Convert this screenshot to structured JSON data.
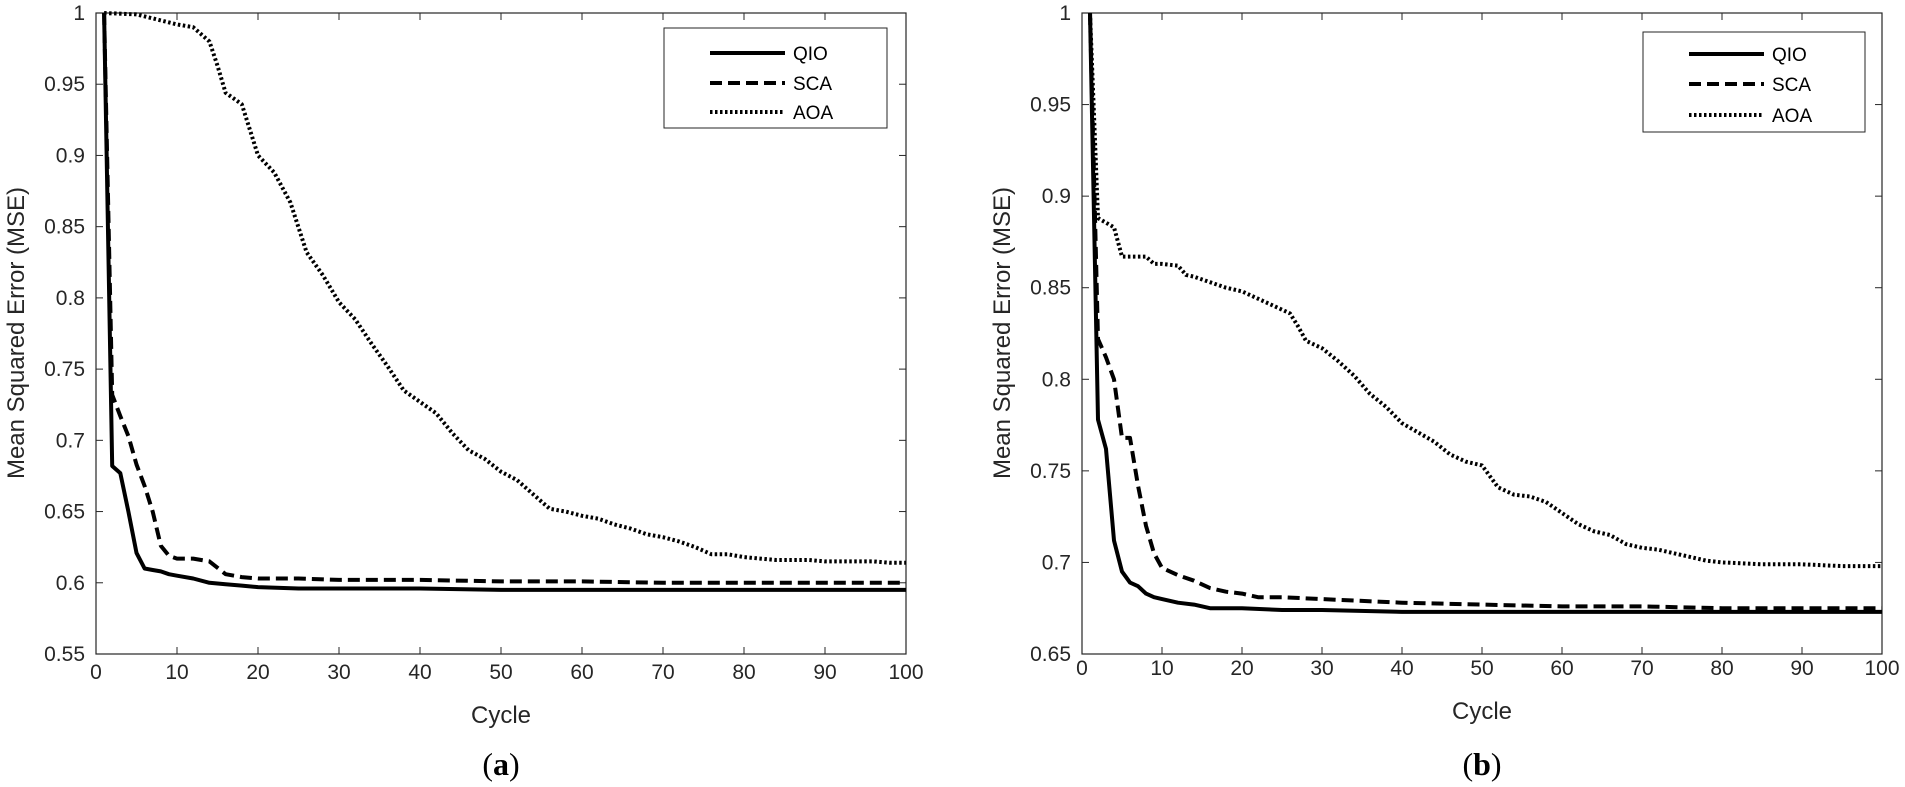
{
  "figure": {
    "style": {
      "axis_color": "#262626",
      "series_color": "#000000",
      "background": "#ffffff"
    }
  },
  "chart_data": [
    {
      "type": "line",
      "caption": "a",
      "title": "",
      "xlabel": "Cycle",
      "ylabel": "Mean Squared Error (MSE)",
      "xlim": [
        0,
        100
      ],
      "ylim": [
        0.55,
        1
      ],
      "xticks": [
        "0",
        "10",
        "20",
        "30",
        "40",
        "50",
        "60",
        "70",
        "80",
        "90",
        "100"
      ],
      "yticks": [
        "0.55",
        "0.6",
        "0.65",
        "0.7",
        "0.75",
        "0.8",
        "0.85",
        "0.9",
        "0.95",
        "1"
      ],
      "legend": "top-right",
      "series": [
        {
          "name": "QIO",
          "style": "solid",
          "x": [
            1,
            2,
            3,
            4,
            5,
            6,
            7,
            8,
            9,
            10,
            12,
            14,
            16,
            18,
            20,
            25,
            30,
            40,
            50,
            60,
            70,
            80,
            90,
            100
          ],
          "y": [
            1.0,
            0.682,
            0.677,
            0.65,
            0.621,
            0.61,
            0.609,
            0.608,
            0.606,
            0.605,
            0.603,
            0.6,
            0.599,
            0.598,
            0.597,
            0.596,
            0.596,
            0.596,
            0.595,
            0.595,
            0.595,
            0.595,
            0.595,
            0.595
          ]
        },
        {
          "name": "SCA",
          "style": "dashed",
          "x": [
            1,
            2,
            3,
            4,
            5,
            6,
            7,
            8,
            9,
            10,
            12,
            14,
            16,
            18,
            20,
            25,
            30,
            40,
            50,
            60,
            70,
            80,
            90,
            100
          ],
          "y": [
            1.0,
            0.732,
            0.717,
            0.703,
            0.683,
            0.668,
            0.65,
            0.626,
            0.619,
            0.617,
            0.617,
            0.615,
            0.606,
            0.604,
            0.603,
            0.603,
            0.602,
            0.602,
            0.601,
            0.601,
            0.6,
            0.6,
            0.6,
            0.6
          ]
        },
        {
          "name": "AOA",
          "style": "dotted",
          "x": [
            1,
            5,
            10,
            12,
            14,
            15,
            16,
            18,
            20,
            22,
            24,
            26,
            28,
            30,
            32,
            34,
            36,
            38,
            40,
            42,
            44,
            46,
            48,
            50,
            52,
            54,
            56,
            58,
            60,
            62,
            64,
            66,
            68,
            70,
            72,
            74,
            76,
            78,
            80,
            82,
            84,
            86,
            88,
            90,
            92,
            94,
            96,
            98,
            100
          ],
          "y": [
            1.0,
            0.999,
            0.992,
            0.99,
            0.98,
            0.963,
            0.944,
            0.936,
            0.9,
            0.888,
            0.867,
            0.832,
            0.816,
            0.797,
            0.785,
            0.768,
            0.752,
            0.735,
            0.727,
            0.719,
            0.705,
            0.693,
            0.687,
            0.678,
            0.672,
            0.662,
            0.652,
            0.65,
            0.647,
            0.645,
            0.641,
            0.638,
            0.634,
            0.632,
            0.629,
            0.625,
            0.62,
            0.62,
            0.618,
            0.617,
            0.616,
            0.616,
            0.616,
            0.615,
            0.615,
            0.615,
            0.615,
            0.614,
            0.614
          ]
        }
      ]
    },
    {
      "type": "line",
      "caption": "b",
      "title": "",
      "xlabel": "Cycle",
      "ylabel": "Mean Squared Error (MSE)",
      "xlim": [
        0,
        100
      ],
      "ylim": [
        0.65,
        1
      ],
      "xticks": [
        "0",
        "10",
        "20",
        "30",
        "40",
        "50",
        "60",
        "70",
        "80",
        "90",
        "100"
      ],
      "yticks": [
        "0.65",
        "0.7",
        "0.75",
        "0.8",
        "0.85",
        "0.9",
        "0.95",
        "1"
      ],
      "legend": "top-right",
      "series": [
        {
          "name": "QIO",
          "style": "solid",
          "x": [
            1,
            2,
            3,
            4,
            5,
            6,
            7,
            8,
            9,
            10,
            12,
            14,
            16,
            18,
            20,
            25,
            30,
            40,
            50,
            60,
            70,
            80,
            90,
            100
          ],
          "y": [
            1.0,
            0.778,
            0.762,
            0.712,
            0.695,
            0.689,
            0.687,
            0.683,
            0.681,
            0.68,
            0.678,
            0.677,
            0.675,
            0.675,
            0.675,
            0.674,
            0.674,
            0.673,
            0.673,
            0.673,
            0.673,
            0.673,
            0.673,
            0.673
          ]
        },
        {
          "name": "SCA",
          "style": "dashed",
          "x": [
            1,
            2,
            3,
            4,
            5,
            6,
            7,
            8,
            9,
            10,
            12,
            14,
            16,
            18,
            20,
            22,
            25,
            30,
            35,
            40,
            50,
            60,
            70,
            80,
            90,
            100
          ],
          "y": [
            1.0,
            0.822,
            0.812,
            0.8,
            0.768,
            0.768,
            0.742,
            0.72,
            0.705,
            0.697,
            0.693,
            0.69,
            0.686,
            0.684,
            0.683,
            0.681,
            0.681,
            0.68,
            0.679,
            0.678,
            0.677,
            0.676,
            0.676,
            0.675,
            0.675,
            0.675
          ]
        },
        {
          "name": "AOA",
          "style": "dotted",
          "x": [
            1,
            2,
            4,
            5,
            6,
            8,
            9,
            10,
            12,
            13,
            14,
            16,
            18,
            20,
            22,
            24,
            26,
            27,
            28,
            30,
            32,
            34,
            36,
            38,
            40,
            42,
            44,
            46,
            48,
            50,
            52,
            54,
            56,
            58,
            60,
            62,
            64,
            66,
            68,
            70,
            72,
            74,
            76,
            78,
            80,
            85,
            90,
            95,
            100
          ],
          "y": [
            1.0,
            0.888,
            0.883,
            0.867,
            0.867,
            0.867,
            0.863,
            0.863,
            0.862,
            0.857,
            0.856,
            0.853,
            0.85,
            0.848,
            0.844,
            0.84,
            0.836,
            0.829,
            0.821,
            0.817,
            0.81,
            0.802,
            0.792,
            0.785,
            0.776,
            0.771,
            0.766,
            0.759,
            0.755,
            0.753,
            0.741,
            0.737,
            0.736,
            0.733,
            0.727,
            0.721,
            0.717,
            0.715,
            0.71,
            0.708,
            0.707,
            0.705,
            0.703,
            0.701,
            0.7,
            0.699,
            0.699,
            0.698,
            0.698
          ]
        }
      ]
    }
  ]
}
